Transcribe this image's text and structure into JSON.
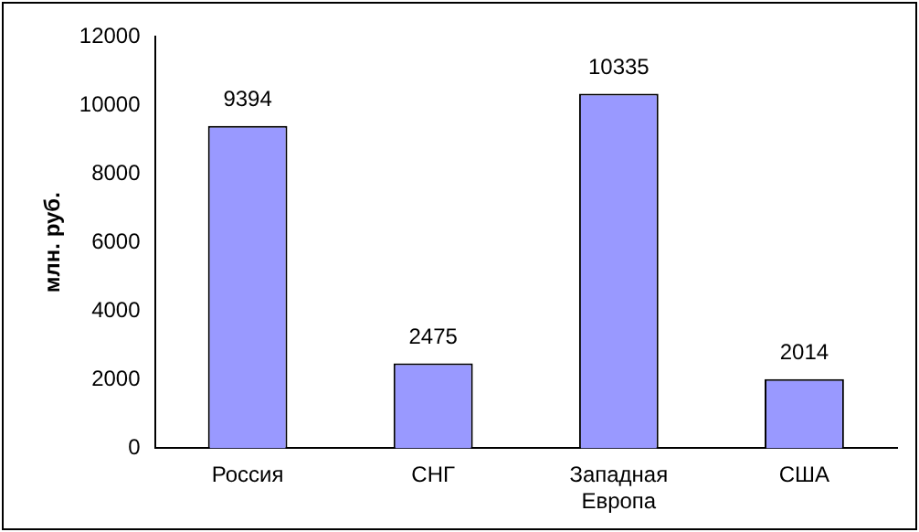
{
  "chart_data": {
    "type": "bar",
    "ylabel": "млн. руб.",
    "categories": [
      "Россия",
      "СНГ",
      "Западная Европа",
      "США"
    ],
    "values": [
      9394,
      2475,
      10335,
      2014
    ],
    "color": "#9999ff",
    "ylim": [
      0,
      12000
    ],
    "yticks": [
      0,
      2000,
      4000,
      6000,
      8000,
      10000,
      12000
    ],
    "grid": false,
    "legend": false,
    "data_labels": true
  }
}
